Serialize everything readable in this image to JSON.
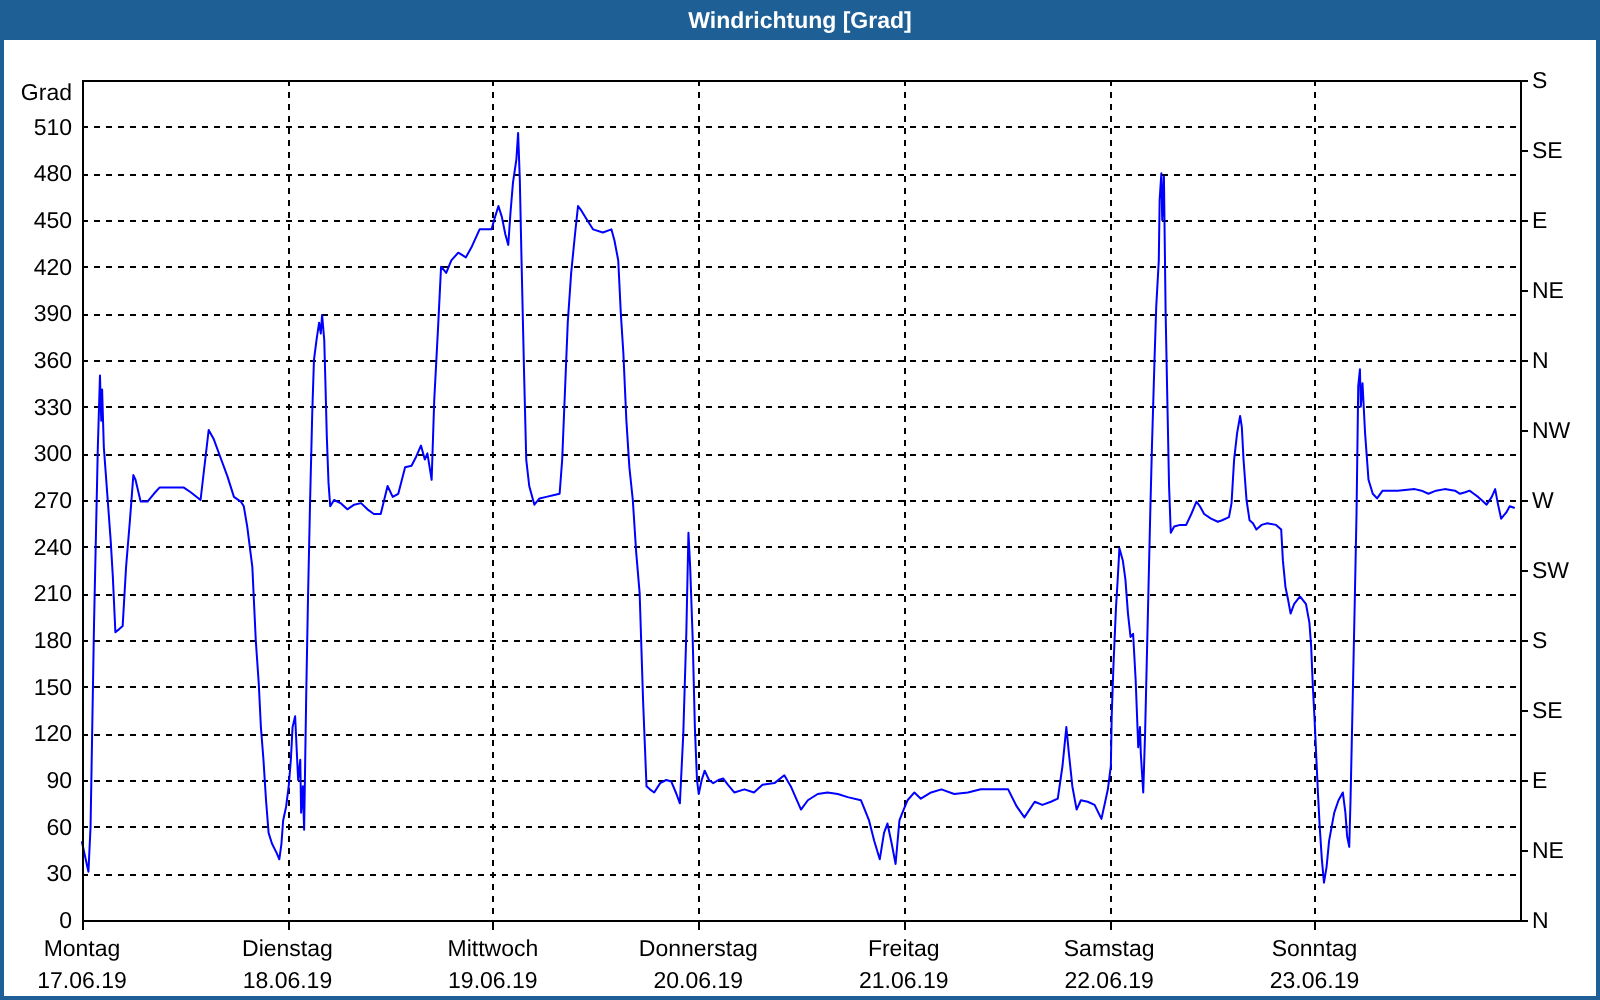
{
  "chart_data": {
    "type": "line",
    "title": "Windrichtung [Grad]",
    "ylabel": "Grad",
    "xlim": [
      "--06-17",
      "--06-24"
    ],
    "xticks": [
      {
        "value": "--06-17",
        "label": "Montag\n17.06.19"
      },
      {
        "value": "--06-18",
        "label": "Dienstag\n18.06.19"
      },
      {
        "value": "--06-19",
        "label": "Mittwoch\n19.06.19"
      },
      {
        "value": "--06-20",
        "label": "Donnerstag\n20.06.19"
      },
      {
        "value": "--06-21",
        "label": "Freitag\n21.06.19"
      },
      {
        "value": "--06-22",
        "label": "Samstag\n22.06.19"
      },
      {
        "value": "--06-23",
        "label": "Sonntag\n23.06.19"
      }
    ],
    "ylim": [
      0,
      540
    ],
    "yticks": [
      0,
      30,
      60,
      90,
      120,
      150,
      180,
      210,
      240,
      270,
      300,
      330,
      360,
      390,
      420,
      450,
      480,
      510
    ],
    "y2_categories": [
      "S",
      "SE",
      "E",
      "NE",
      "N",
      "NW",
      "W",
      "SW",
      "S",
      "SE",
      "E",
      "NE",
      "N"
    ],
    "grid": true,
    "x": [
      "--06-17T00:00",
      "--06-17T00:45",
      "--06-17T01:00",
      "--06-17T01:24",
      "--06-17T01:39",
      "--06-17T01:51",
      "--06-17T02:06",
      "--06-17T02:15",
      "--06-17T02:21",
      "--06-17T02:33",
      "--06-17T02:57",
      "--06-17T03:21",
      "--06-17T03:36",
      "--06-17T03:54",
      "--06-17T04:21",
      "--06-17T04:45",
      "--06-17T05:09",
      "--06-17T05:36",
      "--06-17T06:00",
      "--06-17T06:15",
      "--06-17T06:51",
      "--06-17T07:39",
      "--06-17T08:24",
      "--06-17T09:03",
      "--06-17T11:54",
      "--06-17T12:42",
      "--06-17T13:51",
      "--06-17T14:48",
      "--06-17T15:24",
      "--06-17T16:12",
      "--06-17T17:00",
      "--06-17T17:45",
      "--06-17T18:33",
      "--06-17T18:54",
      "--06-17T19:18",
      "--06-17T19:54",
      "--06-17T20:18",
      "--06-17T20:39",
      "--06-17T20:54",
      "--06-17T21:12",
      "--06-17T21:30",
      "--06-17T21:48",
      "--06-17T22:12",
      "--06-17T22:45",
      "--06-17T23:03",
      "--06-17T23:18",
      "--06-17T23:30",
      "--06-17T23:51",
      "--06-18T00:09",
      "--06-18T00:24",
      "--06-18T00:36",
      "--06-18T00:54",
      "--06-18T01:15",
      "--06-18T01:30",
      "--06-18T01:36",
      "--06-18T01:48",
      "--06-18T01:57",
      "--06-18T02:12",
      "--06-18T02:24",
      "--06-18T02:39",
      "--06-18T02:54",
      "--06-18T03:06",
      "--06-18T03:24",
      "--06-18T03:42",
      "--06-18T03:54",
      "--06-18T04:03",
      "--06-18T04:18",
      "--06-18T04:27",
      "--06-18T04:36",
      "--06-18T04:48",
      "--06-18T05:00",
      "--06-18T05:27",
      "--06-18T06:12",
      "--06-18T07:00",
      "--06-18T07:48",
      "--06-18T08:36",
      "--06-18T09:21",
      "--06-18T10:06",
      "--06-18T10:54",
      "--06-18T11:42",
      "--06-18T12:18",
      "--06-18T12:57",
      "--06-18T13:45",
      "--06-18T14:30",
      "--06-18T15:03",
      "--06-18T15:36",
      "--06-18T16:03",
      "--06-18T16:21",
      "--06-18T16:51",
      "--06-18T17:09",
      "--06-18T17:36",
      "--06-18T17:57",
      "--06-18T18:33",
      "--06-18T19:09",
      "--06-18T19:57",
      "--06-18T20:15",
      "--06-18T20:51",
      "--06-18T21:33",
      "--06-18T22:27",
      "--06-18T23:51",
      "--06-19T00:09",
      "--06-19T00:39",
      "--06-19T01:03",
      "--06-19T01:27",
      "--06-19T01:48",
      "--06-19T02:03",
      "--06-19T02:21",
      "--06-19T02:45",
      "--06-19T02:57",
      "--06-19T03:09",
      "--06-19T03:21",
      "--06-19T03:39",
      "--06-19T03:54",
      "--06-19T04:15",
      "--06-19T04:51",
      "--06-19T05:27",
      "--06-19T06:15",
      "--06-19T07:03",
      "--06-19T07:48",
      "--06-19T08:06",
      "--06-19T08:21",
      "--06-19T08:45",
      "--06-19T09:09",
      "--06-19T09:36",
      "--06-19T09:57",
      "--06-19T10:21",
      "--06-19T10:54",
      "--06-19T11:42",
      "--06-19T12:51",
      "--06-19T13:51",
      "--06-19T14:12",
      "--06-19T14:39",
      "--06-19T14:57",
      "--06-19T15:15",
      "--06-19T15:36",
      "--06-19T15:57",
      "--06-19T16:21",
      "--06-19T16:45",
      "--06-19T17:09",
      "--06-19T17:33",
      "--06-19T17:57",
      "--06-19T18:21",
      "--06-19T18:51",
      "--06-19T19:33",
      "--06-19T20:15",
      "--06-19T20:51",
      "--06-19T21:27",
      "--06-19T21:51",
      "--06-19T22:15",
      "--06-19T22:36",
      "--06-19T22:51",
      "--06-19T23:03",
      "--06-19T23:21",
      "--06-19T23:36",
      "--06-19T23:51",
      "--06-20T00:03",
      "--06-20T00:24",
      "--06-20T00:45",
      "--06-20T01:15",
      "--06-20T01:45",
      "--06-20T02:21",
      "--06-20T02:54",
      "--06-20T03:27",
      "--06-20T04:12",
      "--06-20T05:24",
      "--06-20T06:30",
      "--06-20T07:30",
      "--06-20T08:54",
      "--06-20T10:03",
      "--06-20T10:48",
      "--06-20T12:00",
      "--06-20T12:48",
      "--06-20T13:57",
      "--06-20T15:06",
      "--06-20T16:18",
      "--06-20T17:27",
      "--06-20T19:00",
      "--06-20T19:57",
      "--06-20T20:33",
      "--06-20T21:12",
      "--06-20T21:42",
      "--06-20T22:06",
      "--06-20T22:36",
      "--06-20T23:03",
      "--06-20T23:30",
      "--06-20T23:51",
      "--06-21T00:27",
      "--06-21T01:15",
      "--06-21T02:00",
      "--06-21T03:12",
      "--06-21T04:24",
      "--06-21T05:54",
      "--06-21T07:30",
      "--06-21T09:00",
      "--06-21T10:36",
      "--06-21T12:12",
      "--06-21T13:12",
      "--06-21T14:06",
      "--06-21T15:18",
      "--06-21T16:12",
      "--06-21T17:12",
      "--06-21T18:00",
      "--06-21T18:33",
      "--06-21T19:00",
      "--06-21T19:18",
      "--06-21T19:42",
      "--06-21T20:12",
      "--06-21T20:42",
      "--06-21T21:30",
      "--06-21T22:18",
      "--06-21T23:06",
      "--06-21T23:30",
      "--06-21T23:51",
      "--06-22T00:12",
      "--06-22T00:18",
      "--06-22T00:30",
      "--06-22T00:48",
      "--06-22T01:00",
      "--06-22T01:12",
      "--06-22T01:36",
      "--06-22T01:54",
      "--06-22T02:12",
      "--06-22T02:30",
      "--06-22T02:48",
      "--06-22T03:06",
      "--06-22T03:24",
      "--06-22T03:36",
      "--06-22T03:42",
      "--06-22T03:59",
      "--06-22T04:12",
      "--06-22T04:24",
      "--06-22T04:36",
      "--06-22T04:48",
      "--06-22T05:00",
      "--06-22T05:18",
      "--06-22T05:30",
      "--06-22T05:48",
      "--06-22T05:54",
      "--06-22T06:06",
      "--06-22T06:12",
      "--06-22T06:24",
      "--06-22T06:36",
      "--06-22T06:48",
      "--06-22T07:00",
      "--06-22T07:12",
      "--06-22T07:36",
      "--06-22T08:18",
      "--06-22T09:00",
      "--06-22T09:36",
      "--06-22T10:12",
      "--06-22T10:36",
      "--06-22T11:06",
      "--06-22T11:54",
      "--06-22T12:42",
      "--06-22T13:12",
      "--06-22T14:00",
      "--06-22T14:18",
      "--06-22T14:36",
      "--06-22T14:57",
      "--06-22T15:18",
      "--06-22T15:30",
      "--06-22T15:42",
      "--06-22T16:03",
      "--06-22T16:24",
      "--06-22T16:48",
      "--06-22T17:12",
      "--06-22T17:48",
      "--06-22T18:30",
      "--06-22T19:30",
      "--06-22T20:06",
      "--06-22T20:18",
      "--06-22T20:36",
      "--06-22T20:54",
      "--06-22T21:12",
      "--06-22T21:36",
      "--06-22T22:18",
      "--06-22T23:00",
      "--06-22T23:24",
      "--06-22T23:36",
      "--06-22T23:48",
      "--06-23T00:00",
      "--06-23T00:12",
      "--06-23T00:24",
      "--06-23T00:36",
      "--06-23T00:51",
      "--06-23T01:06",
      "--06-23T01:24",
      "--06-23T01:42",
      "--06-23T02:00",
      "--06-23T02:18",
      "--06-23T02:48",
      "--06-23T03:18",
      "--06-23T03:36",
      "--06-23T03:48",
      "--06-23T04:03",
      "--06-23T04:12",
      "--06-23T04:27",
      "--06-23T04:42",
      "--06-23T04:54",
      "--06-23T05:06",
      "--06-23T05:18",
      "--06-23T05:24",
      "--06-23T05:36",
      "--06-23T05:54",
      "--06-23T06:18",
      "--06-23T06:48",
      "--06-23T07:18",
      "--06-23T07:57",
      "--06-23T09:42",
      "--06-23T11:42",
      "--06-23T12:30",
      "--06-23T13:18",
      "--06-23T14:12",
      "--06-23T15:12",
      "--06-23T16:24",
      "--06-23T17:00",
      "--06-23T17:36",
      "--06-23T18:06",
      "--06-23T18:36",
      "--06-23T19:06",
      "--06-23T19:42",
      "--06-23T20:06",
      "--06-23T20:42",
      "--06-23T21:06",
      "--06-23T21:24",
      "--06-23T21:48",
      "--06-23T22:24",
      "--06-23T22:48",
      "--06-23T23:18"
    ],
    "series": [
      {
        "color": "#0000ff",
        "values": [
          50,
          31,
          60,
          189,
          253,
          304,
          350,
          321,
          341,
          304,
          274,
          244,
          221,
          185,
          187,
          189,
          227,
          257,
          286,
          283,
          269,
          269,
          274,
          278,
          278,
          275,
          270,
          315,
          309,
          297,
          285,
          272,
          269,
          266,
          253,
          227,
          180,
          152,
          124,
          103,
          77,
          56,
          49,
          43,
          39,
          49,
          64,
          73,
          86,
          103,
          124,
          131,
          90,
          103,
          69,
          86,
          58,
          146,
          206,
          270,
          326,
          360,
          373,
          384,
          377,
          389,
          373,
          343,
          311,
          281,
          266,
          270,
          268,
          264,
          267,
          268,
          264,
          261,
          261,
          279,
          272,
          274,
          291,
          292,
          298,
          305,
          296,
          300,
          283,
          334,
          381,
          420,
          416,
          424,
          429,
          428,
          426,
          433,
          444,
          444,
          450,
          459,
          452,
          441,
          434,
          454,
          474,
          489,
          506,
          476,
          424,
          351,
          296,
          279,
          267,
          271,
          272,
          273,
          274,
          296,
          330,
          384,
          416,
          441,
          459,
          456,
          451,
          444,
          442,
          444,
          437,
          424,
          390,
          364,
          321,
          291,
          270,
          236,
          210,
          141,
          86,
          84,
          82,
          88,
          90,
          89,
          81,
          75,
          120,
          184,
          249,
          227,
          180,
          124,
          90,
          81,
          90,
          96,
          90,
          88,
          90,
          91,
          87,
          82,
          84,
          82,
          87,
          88,
          93,
          86,
          71,
          77,
          81,
          82,
          81,
          79,
          77,
          64,
          51,
          39,
          56,
          62,
          49,
          36,
          64,
          69,
          77,
          82,
          78,
          82,
          84,
          81,
          82,
          84,
          84,
          84,
          73,
          66,
          76,
          74,
          76,
          78,
          99,
          124,
          107,
          86,
          71,
          77,
          76,
          74,
          65,
          75,
          84,
          99,
          131,
          163,
          201,
          219,
          239,
          231,
          219,
          197,
          182,
          184,
          154,
          111,
          124,
          107,
          82,
          120,
          167,
          214,
          261,
          304,
          360,
          394,
          424,
          463,
          480,
          450,
          478,
          390,
          334,
          279,
          249,
          253,
          254,
          254,
          261,
          269,
          266,
          261,
          258,
          256,
          257,
          259,
          268,
          296,
          313,
          324,
          317,
          296,
          270,
          257,
          255,
          251,
          254,
          255,
          254,
          251,
          231,
          214,
          206,
          197,
          203,
          208,
          203,
          191,
          176,
          150,
          129,
          105,
          81,
          60,
          39,
          24,
          34,
          51,
          60,
          69,
          77,
          82,
          69,
          54,
          47,
          77,
          141,
          206,
          261,
          343,
          354,
          330,
          345,
          313,
          283,
          274,
          271,
          276,
          276,
          277,
          276,
          274,
          276,
          277,
          276,
          274,
          275,
          276,
          274,
          272,
          269,
          267,
          272,
          277,
          268,
          258,
          262,
          266,
          265
        ]
      }
    ]
  }
}
